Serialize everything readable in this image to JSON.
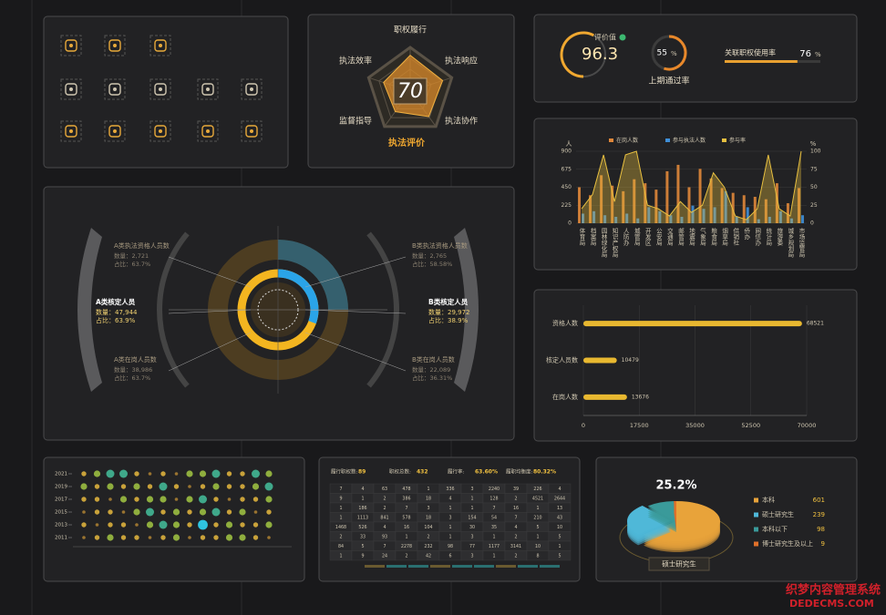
{
  "radar": {
    "labels": [
      "职权履行",
      "执法效率",
      "执法响应",
      "监督指导",
      "执法协作"
    ],
    "values": [
      82,
      64,
      78,
      58,
      72
    ],
    "score": 70,
    "title": "执法评价"
  },
  "kpi": {
    "eval_label": "评价值",
    "eval_value": 96.3,
    "pass_value": 55,
    "pass_unit": "%",
    "pass_label": "上期通过率",
    "usage_label": "关联职权使用率",
    "usage_value": 76,
    "usage_unit": "%"
  },
  "personnel": {
    "left": [
      {
        "title": "A类执法资格人员数",
        "count": "数量：2,721",
        "share": "占比：63.7%"
      },
      {
        "title": "A类核定人员",
        "count": "数量：47,944",
        "share": "占比：63.9%"
      },
      {
        "title": "A类在岗人员数",
        "count": "数量：38,986",
        "share": "占比：63.7%"
      }
    ],
    "right": [
      {
        "title": "B类执法资格人员数",
        "count": "数量：2,765",
        "share": "占比：58.58%"
      },
      {
        "title": "B类核定人员",
        "count": "数量：29,972",
        "share": "占比：38.9%"
      },
      {
        "title": "B类在岗人员数",
        "count": "数量：22,089",
        "share": "占比：36.31%"
      }
    ]
  },
  "chart_data": [
    {
      "type": "bar-line",
      "y_label": "人",
      "y2_label": "%",
      "categories": [
        "体育局",
        "档案局",
        "园林绿化局",
        "知识产权局",
        "人防办",
        "城管局",
        "开发区",
        "公安局",
        "交通局",
        "邮管局",
        "地震局",
        "气象局",
        "粮食局",
        "烟草局",
        "供销社",
        "侨办",
        "网信办",
        "统计局",
        "旅游委",
        "城乡规划局",
        "市场监管局"
      ],
      "series": [
        {
          "name": "在岗人数",
          "color": "#e0873a",
          "values": [
            450,
            350,
            600,
            470,
            400,
            550,
            500,
            420,
            650,
            730,
            450,
            680,
            560,
            440,
            380,
            350,
            330,
            300,
            500,
            250,
            440
          ]
        },
        {
          "name": "参与执法人数",
          "color": "#3f8fd8",
          "values": [
            120,
            150,
            100,
            80,
            120,
            60,
            200,
            150,
            100,
            80,
            220,
            180,
            200,
            400,
            80,
            200,
            50,
            80,
            150,
            60,
            100
          ]
        },
        {
          "name": "参与率",
          "color": "#e8c040",
          "axis": "y2",
          "values": [
            20,
            40,
            95,
            30,
            95,
            100,
            25,
            20,
            10,
            30,
            15,
            25,
            70,
            50,
            10,
            5,
            20,
            95,
            20,
            10,
            100
          ]
        }
      ],
      "ylim": [
        0,
        900
      ],
      "yticks": [
        0,
        225,
        450,
        675,
        900
      ],
      "y2lim": [
        0,
        100
      ],
      "y2ticks": [
        0,
        25,
        50,
        75,
        100
      ],
      "grid": true
    },
    {
      "type": "hbar",
      "categories": [
        "资格人数",
        "核定人员数",
        "在岗人数"
      ],
      "values": [
        68521,
        10479,
        13676
      ],
      "color": "#e8b830",
      "xlim": [
        0,
        70000
      ],
      "xticks": [
        0,
        17500,
        35000,
        52500,
        70000
      ],
      "grid": true
    },
    {
      "type": "pie",
      "annotation": "25.2%",
      "caption": "硕士研究生",
      "categories": [
        "本科",
        "硕士研究生",
        "本科以下",
        "博士研究生及以上"
      ],
      "values": [
        601,
        239,
        98,
        9
      ],
      "colors": [
        "#e8a33a",
        "#4fb8d8",
        "#3a9a9a",
        "#e0702a"
      ]
    },
    {
      "type": "dot-matrix",
      "rows": [
        "2021",
        "2019",
        "2017",
        "2015",
        "2013",
        "2011"
      ],
      "values": [
        [
          2,
          3,
          4,
          4,
          2,
          1,
          2,
          1,
          3,
          3,
          4,
          2,
          2,
          4,
          3
        ],
        [
          3,
          2,
          3,
          2,
          3,
          2,
          4,
          2,
          1,
          2,
          3,
          2,
          2,
          3,
          4
        ],
        [
          2,
          2,
          1,
          3,
          2,
          3,
          3,
          1,
          3,
          4,
          2,
          1,
          2,
          2,
          3
        ],
        [
          1,
          2,
          2,
          1,
          3,
          4,
          2,
          3,
          2,
          3,
          4,
          2,
          3,
          1,
          2
        ],
        [
          2,
          1,
          2,
          2,
          1,
          3,
          4,
          3,
          2,
          5,
          2,
          3,
          2,
          2,
          3
        ],
        [
          1,
          2,
          3,
          2,
          2,
          1,
          2,
          3,
          1,
          2,
          2,
          3,
          3,
          2,
          1
        ]
      ],
      "colors": [
        "#9a7430",
        "#c9a23a",
        "#8fae3e",
        "#3fa88a",
        "#2fc4e0"
      ]
    }
  ],
  "table": {
    "summary": [
      {
        "label": "履行职权数:",
        "value": "89"
      },
      {
        "label": "职权总数:",
        "value": "432"
      },
      {
        "label": "履行率:",
        "value": "63.60%"
      },
      {
        "label": "履职均衡度:",
        "value": "80.32%"
      }
    ],
    "rows": [
      [
        7,
        4,
        63,
        478,
        1,
        336,
        3,
        2240,
        39,
        226,
        4
      ],
      [
        9,
        1,
        2,
        386,
        18,
        4,
        1,
        128,
        2,
        4521,
        2644
      ],
      [
        1,
        186,
        2,
        7,
        3,
        1,
        1,
        7,
        16,
        1,
        13
      ],
      [
        1,
        1113,
        841,
        578,
        18,
        3,
        154,
        54,
        7,
        210,
        43
      ],
      [
        1468,
        526,
        4,
        16,
        104,
        1,
        30,
        35,
        4,
        5,
        10
      ],
      [
        2,
        33,
        93,
        1,
        2,
        1,
        3,
        1,
        2,
        1,
        5
      ],
      [
        84,
        5,
        7,
        2278,
        232,
        98,
        77,
        1177,
        3141,
        10,
        1
      ],
      [
        1,
        9,
        24,
        2,
        42,
        6,
        3,
        1,
        2,
        8,
        5
      ]
    ]
  },
  "watermark": [
    "织梦内容管理系统",
    "DEDECMS.COM"
  ]
}
